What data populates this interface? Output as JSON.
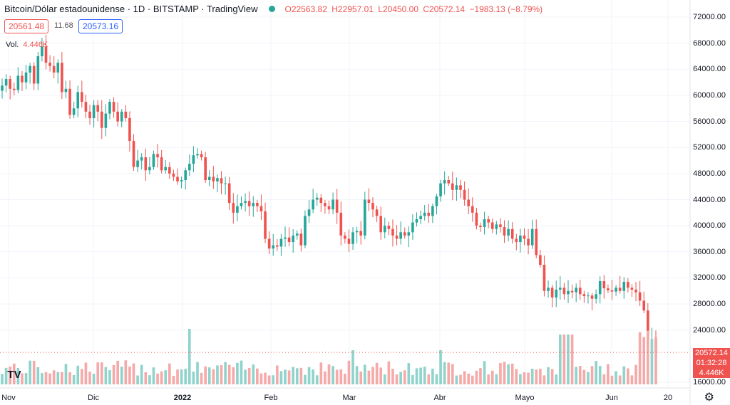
{
  "header": {
    "title": "Bitcoin/Dólar estadounidense · 1D · BITSTAMP · TradingView",
    "open": "O22563.82",
    "high": "H22957.01",
    "low": "L20450.00",
    "close": "C20572.14",
    "change": "−1983.13 (−8.79%)"
  },
  "quote": {
    "bid": "20561.48",
    "spread": "11.68",
    "ask": "20573.16"
  },
  "volume_legend": {
    "label": "Vol.",
    "value": "4.446K"
  },
  "price_tag": "20572.14",
  "timer_tag": "01:32:28",
  "volume_tag": "4.446K",
  "colors": {
    "up": "#26a69a",
    "down": "#ef5350",
    "up_vol": "#8fd3cb",
    "down_vol": "#f5a9a8",
    "grid": "#f0f3fa"
  },
  "icons": {
    "logo": "tradingview-logo-icon",
    "settings": "gear-icon"
  },
  "chart_data": {
    "type": "candlestick",
    "y_axis_ticks": [
      "72000.00",
      "68000.00",
      "64000.00",
      "60000.00",
      "56000.00",
      "52000.00",
      "48000.00",
      "44000.00",
      "40000.00",
      "36000.00",
      "32000.00",
      "28000.00",
      "24000.00",
      "16000.00"
    ],
    "x_axis_ticks": [
      {
        "label": "Nov",
        "bold": false
      },
      {
        "label": "Dic",
        "bold": false
      },
      {
        "label": "2022",
        "bold": true
      },
      {
        "label": "Feb",
        "bold": false
      },
      {
        "label": "Mar",
        "bold": false
      },
      {
        "label": "Abr",
        "bold": false
      },
      {
        "label": "Mayo",
        "bold": false
      },
      {
        "label": "Jun",
        "bold": false
      },
      {
        "label": "20",
        "bold": false
      }
    ],
    "ylim": [
      16000,
      72000
    ],
    "closes": [
      61500,
      62500,
      61000,
      60800,
      63000,
      62000,
      63500,
      64500,
      61800,
      66000,
      67500,
      65000,
      64500,
      63500,
      65000,
      60500,
      61000,
      57000,
      58000,
      60500,
      59000,
      57500,
      56500,
      58500,
      57500,
      55000,
      57200,
      59000,
      57500,
      56000,
      57500,
      56500,
      53000,
      49000,
      50000,
      50500,
      48500,
      49000,
      51000,
      50500,
      48500,
      49000,
      48000,
      47500,
      46800,
      47000,
      48500,
      49500,
      50800,
      51000,
      50500,
      47000,
      47500,
      46800,
      47300,
      46500,
      46500,
      43500,
      42000,
      43000,
      43500,
      43800,
      43000,
      43500,
      43000,
      42200,
      38000,
      36500,
      37000,
      36800,
      38000,
      38200,
      37500,
      38500,
      38800,
      37000,
      41500,
      42500,
      44000,
      44300,
      43500,
      43000,
      42500,
      44000,
      42000,
      38500,
      38000,
      37200,
      39000,
      39200,
      38500,
      44000,
      43500,
      42500,
      41500,
      39000,
      40000,
      39500,
      38500,
      38000,
      39000,
      38500,
      39000,
      40500,
      41000,
      41500,
      42000,
      41500,
      43000,
      44500,
      46500,
      47000,
      46500,
      45500,
      46200,
      45500,
      44000,
      43000,
      42000,
      40000,
      39800,
      41000,
      40500,
      39500,
      40200,
      39800,
      38500,
      39500,
      38000,
      37500,
      38500,
      38000,
      37000,
      39500,
      35500,
      34000,
      30000,
      30500,
      29000,
      30200,
      30500,
      29500,
      30000,
      29800,
      30500,
      29500,
      29200,
      29300,
      28800,
      29500,
      31500,
      30400,
      30100,
      29900,
      30500,
      30000,
      31400,
      30500,
      30200,
      29800,
      28500,
      27000,
      22500,
      22600,
      20572
    ],
    "volumes_note": "volume bars drawn from closes series"
  }
}
